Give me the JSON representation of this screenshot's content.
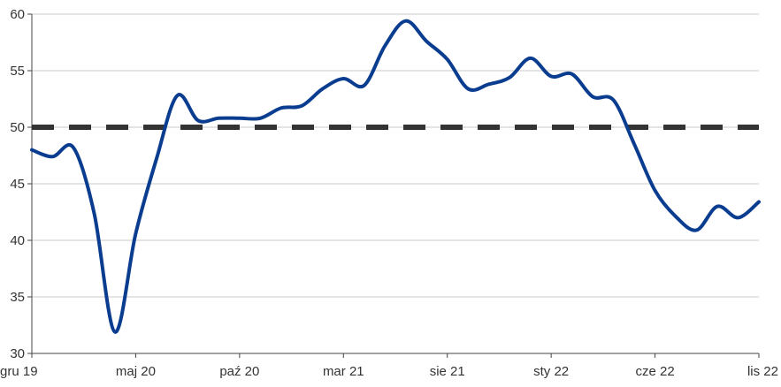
{
  "chart_data": {
    "type": "line",
    "title": "",
    "xlabel": "",
    "ylabel": "",
    "ylim": [
      30,
      60
    ],
    "yticks": [
      30,
      35,
      40,
      45,
      50,
      55,
      60
    ],
    "grid": "horizontal",
    "xtick_labels": [
      "gru 19",
      "maj 20",
      "paź 20",
      "mar 21",
      "sie 21",
      "sty 22",
      "cze 22",
      "lis 22"
    ],
    "x": [
      "gru 19",
      "sty 20",
      "lut 20",
      "mar 20",
      "kwi 20",
      "maj 20",
      "cze 20",
      "lip 20",
      "sie 20",
      "wrz 20",
      "paź 20",
      "lis 20",
      "gru 20",
      "sty 21",
      "lut 21",
      "mar 21",
      "kwi 21",
      "maj 21",
      "cze 21",
      "lip 21",
      "sie 21",
      "wrz 21",
      "paź 21",
      "lis 21",
      "gru 21",
      "sty 22",
      "lut 22",
      "mar 22",
      "kwi 22",
      "maj 22",
      "cze 22",
      "lip 22",
      "sie 22",
      "wrz 22",
      "paź 22",
      "lis 22"
    ],
    "series": [
      {
        "values": [
          48.0,
          47.4,
          48.2,
          42.4,
          31.9,
          40.6,
          47.2,
          52.8,
          50.6,
          50.8,
          50.8,
          50.8,
          51.7,
          51.9,
          53.4,
          54.3,
          53.7,
          57.2,
          59.4,
          57.6,
          56.0,
          53.4,
          53.8,
          54.4,
          56.1,
          54.5,
          54.7,
          52.7,
          52.4,
          48.5,
          44.4,
          42.1,
          40.9,
          43.0,
          42.0,
          43.4
        ],
        "color": "#0a3d8f"
      }
    ],
    "reference_line": {
      "value": 50,
      "style": "dashed",
      "color": "#333333"
    }
  }
}
